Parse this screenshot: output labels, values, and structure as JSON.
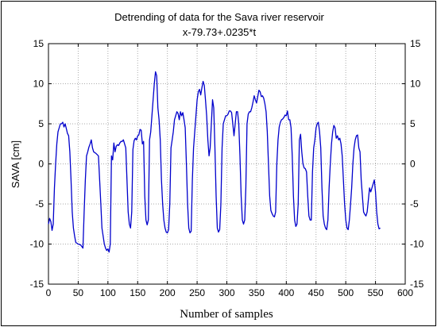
{
  "chart_data": {
    "type": "line",
    "title": "Detrending of data for the Sava river reservoir",
    "subtitle": "x-79.73+.0235*t",
    "xlabel": "Number of samples",
    "ylabel": "SAVA [cm]",
    "xlim": [
      0,
      600
    ],
    "ylim": [
      -15,
      15
    ],
    "xticks": [
      "0",
      "50",
      "100",
      "150",
      "200",
      "250",
      "300",
      "350",
      "400",
      "450",
      "500",
      "550",
      "600"
    ],
    "yticks": [
      "15",
      "10",
      "5",
      "0",
      "-5",
      "-10",
      "-15"
    ],
    "grid": true,
    "line_color": "#0000cc",
    "series": [
      {
        "points": [
          [
            0,
            -7.5
          ],
          [
            2,
            -6.8
          ],
          [
            4,
            -7.2
          ],
          [
            6,
            -8.3
          ],
          [
            8,
            -7.5
          ],
          [
            10,
            -3
          ],
          [
            12,
            0
          ],
          [
            14,
            2.5
          ],
          [
            16,
            4
          ],
          [
            18,
            4.5
          ],
          [
            20,
            5
          ],
          [
            22,
            5
          ],
          [
            24,
            5.2
          ],
          [
            26,
            4.6
          ],
          [
            28,
            5
          ],
          [
            30,
            4.4
          ],
          [
            32,
            3.8
          ],
          [
            34,
            3.5
          ],
          [
            36,
            1.5
          ],
          [
            38,
            -2
          ],
          [
            40,
            -6
          ],
          [
            42,
            -8
          ],
          [
            44,
            -9
          ],
          [
            46,
            -9.8
          ],
          [
            50,
            -10
          ],
          [
            54,
            -10.1
          ],
          [
            56,
            -10.3
          ],
          [
            58,
            -10.5
          ],
          [
            60,
            -6
          ],
          [
            62,
            -2
          ],
          [
            64,
            1
          ],
          [
            66,
            1.5
          ],
          [
            68,
            2.1
          ],
          [
            70,
            2.5
          ],
          [
            72,
            3
          ],
          [
            74,
            2
          ],
          [
            76,
            1.5
          ],
          [
            80,
            1.3
          ],
          [
            84,
            1
          ],
          [
            86,
            -2
          ],
          [
            88,
            -5
          ],
          [
            90,
            -8
          ],
          [
            92,
            -9
          ],
          [
            94,
            -10
          ],
          [
            96,
            -10.5
          ],
          [
            98,
            -10.8
          ],
          [
            100,
            -10.6
          ],
          [
            102,
            -11
          ],
          [
            104,
            -10
          ],
          [
            106,
            1
          ],
          [
            108,
            0.5
          ],
          [
            110,
            2.6
          ],
          [
            112,
            1.5
          ],
          [
            114,
            2.2
          ],
          [
            116,
            2.4
          ],
          [
            118,
            2.3
          ],
          [
            120,
            2.6
          ],
          [
            122,
            2.8
          ],
          [
            124,
            2.8
          ],
          [
            126,
            3
          ],
          [
            128,
            2.5
          ],
          [
            130,
            2
          ],
          [
            132,
            -2
          ],
          [
            134,
            -6
          ],
          [
            136,
            -7.5
          ],
          [
            138,
            -8
          ],
          [
            140,
            -6
          ],
          [
            142,
            1.8
          ],
          [
            144,
            2.9
          ],
          [
            146,
            3.2
          ],
          [
            148,
            3
          ],
          [
            150,
            3.5
          ],
          [
            152,
            3.6
          ],
          [
            154,
            4.3
          ],
          [
            156,
            4.2
          ],
          [
            158,
            2.5
          ],
          [
            160,
            2.8
          ],
          [
            162,
            -4
          ],
          [
            164,
            -7
          ],
          [
            166,
            -7.6
          ],
          [
            168,
            -7
          ],
          [
            170,
            3
          ],
          [
            172,
            4
          ],
          [
            174,
            6
          ],
          [
            176,
            8
          ],
          [
            178,
            10
          ],
          [
            180,
            11.5
          ],
          [
            182,
            11
          ],
          [
            184,
            7
          ],
          [
            186,
            5.5
          ],
          [
            188,
            3
          ],
          [
            190,
            -2
          ],
          [
            192,
            -5
          ],
          [
            194,
            -7
          ],
          [
            196,
            -8
          ],
          [
            198,
            -8.5
          ],
          [
            200,
            -8.6
          ],
          [
            202,
            -8.2
          ],
          [
            204,
            -5
          ],
          [
            206,
            2
          ],
          [
            208,
            3
          ],
          [
            210,
            4
          ],
          [
            212,
            5.5
          ],
          [
            214,
            6
          ],
          [
            216,
            6.5
          ],
          [
            218,
            6.3
          ],
          [
            220,
            5.5
          ],
          [
            222,
            6.5
          ],
          [
            224,
            6
          ],
          [
            226,
            6.4
          ],
          [
            228,
            5.5
          ],
          [
            230,
            4.5
          ],
          [
            232,
            0
          ],
          [
            234,
            -5
          ],
          [
            236,
            -8
          ],
          [
            238,
            -8.6
          ],
          [
            240,
            -8.4
          ],
          [
            242,
            -2
          ],
          [
            244,
            2
          ],
          [
            246,
            4
          ],
          [
            248,
            6
          ],
          [
            250,
            8
          ],
          [
            252,
            9
          ],
          [
            254,
            9.3
          ],
          [
            256,
            8.6
          ],
          [
            258,
            9.5
          ],
          [
            260,
            10.3
          ],
          [
            262,
            9.8
          ],
          [
            264,
            8
          ],
          [
            266,
            6
          ],
          [
            268,
            3
          ],
          [
            270,
            1
          ],
          [
            272,
            2
          ],
          [
            274,
            5
          ],
          [
            276,
            8
          ],
          [
            278,
            7
          ],
          [
            280,
            2
          ],
          [
            282,
            -4
          ],
          [
            284,
            -8
          ],
          [
            286,
            -8.5
          ],
          [
            288,
            -8.2
          ],
          [
            290,
            -5
          ],
          [
            292,
            2
          ],
          [
            294,
            5
          ],
          [
            296,
            5.5
          ],
          [
            298,
            6
          ],
          [
            300,
            6
          ],
          [
            302,
            6.2
          ],
          [
            304,
            6.6
          ],
          [
            306,
            6.6
          ],
          [
            308,
            6.4
          ],
          [
            310,
            5
          ],
          [
            312,
            3.5
          ],
          [
            314,
            5
          ],
          [
            316,
            6.5
          ],
          [
            318,
            6.5
          ],
          [
            320,
            5
          ],
          [
            322,
            1
          ],
          [
            324,
            -4
          ],
          [
            326,
            -7
          ],
          [
            328,
            -7.5
          ],
          [
            330,
            -7
          ],
          [
            332,
            -3
          ],
          [
            334,
            5
          ],
          [
            336,
            6.2
          ],
          [
            338,
            6.5
          ],
          [
            340,
            6.5
          ],
          [
            342,
            7
          ],
          [
            344,
            7.7
          ],
          [
            346,
            8.5
          ],
          [
            348,
            8
          ],
          [
            350,
            7.6
          ],
          [
            352,
            8.4
          ],
          [
            354,
            9.2
          ],
          [
            356,
            9
          ],
          [
            358,
            8.4
          ],
          [
            360,
            8.5
          ],
          [
            362,
            8.2
          ],
          [
            364,
            7.5
          ],
          [
            366,
            6.5
          ],
          [
            368,
            4
          ],
          [
            370,
            0
          ],
          [
            372,
            -4
          ],
          [
            374,
            -5.8
          ],
          [
            376,
            -6.2
          ],
          [
            378,
            -6.5
          ],
          [
            380,
            -6.6
          ],
          [
            382,
            -6
          ],
          [
            384,
            0
          ],
          [
            386,
            3
          ],
          [
            388,
            4.6
          ],
          [
            390,
            5.2
          ],
          [
            392,
            5.5
          ],
          [
            394,
            5.6
          ],
          [
            396,
            5.8
          ],
          [
            398,
            6.1
          ],
          [
            400,
            6
          ],
          [
            402,
            6.6
          ],
          [
            404,
            5.5
          ],
          [
            406,
            5.5
          ],
          [
            408,
            4.5
          ],
          [
            410,
            1
          ],
          [
            412,
            -4
          ],
          [
            414,
            -7
          ],
          [
            416,
            -7.8
          ],
          [
            418,
            -7.5
          ],
          [
            420,
            -5
          ],
          [
            422,
            3
          ],
          [
            424,
            3.7
          ],
          [
            426,
            1.5
          ],
          [
            428,
            0
          ],
          [
            430,
            -0.5
          ],
          [
            432,
            -0.6
          ],
          [
            434,
            -1
          ],
          [
            436,
            -4
          ],
          [
            438,
            -6.5
          ],
          [
            440,
            -7
          ],
          [
            442,
            -7
          ],
          [
            444,
            -1
          ],
          [
            446,
            2
          ],
          [
            448,
            3
          ],
          [
            450,
            4.5
          ],
          [
            452,
            5
          ],
          [
            454,
            5.2
          ],
          [
            456,
            4
          ],
          [
            458,
            2
          ],
          [
            460,
            -3
          ],
          [
            462,
            -6.5
          ],
          [
            464,
            -7.5
          ],
          [
            466,
            -8
          ],
          [
            468,
            -8.2
          ],
          [
            470,
            -7
          ],
          [
            472,
            -3
          ],
          [
            474,
            0
          ],
          [
            476,
            2.5
          ],
          [
            478,
            4
          ],
          [
            480,
            4.8
          ],
          [
            482,
            4.5
          ],
          [
            484,
            3.2
          ],
          [
            486,
            3.5
          ],
          [
            488,
            3
          ],
          [
            490,
            3.2
          ],
          [
            492,
            2.5
          ],
          [
            494,
            1
          ],
          [
            496,
            -2
          ],
          [
            498,
            -5
          ],
          [
            500,
            -7
          ],
          [
            502,
            -8
          ],
          [
            504,
            -8.2
          ],
          [
            506,
            -7
          ],
          [
            508,
            -5
          ],
          [
            510,
            -3
          ],
          [
            512,
            0
          ],
          [
            514,
            2
          ],
          [
            516,
            3
          ],
          [
            518,
            3.5
          ],
          [
            520,
            3.6
          ],
          [
            522,
            2
          ],
          [
            524,
            1.5
          ],
          [
            526,
            -2
          ],
          [
            528,
            -4
          ],
          [
            530,
            -6
          ],
          [
            532,
            -6.3
          ],
          [
            534,
            -6.5
          ],
          [
            536,
            -6
          ],
          [
            538,
            -4.5
          ],
          [
            540,
            -3
          ],
          [
            542,
            -3.5
          ],
          [
            544,
            -3
          ],
          [
            546,
            -2.5
          ],
          [
            548,
            -2
          ],
          [
            550,
            -3.5
          ],
          [
            552,
            -6
          ],
          [
            554,
            -7.5
          ],
          [
            556,
            -8.1
          ],
          [
            558,
            -8
          ]
        ]
      }
    ]
  }
}
